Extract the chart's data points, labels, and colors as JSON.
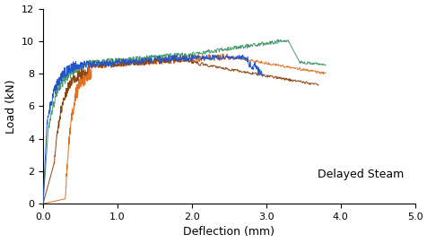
{
  "title": "",
  "xlabel": "Deflection (mm)",
  "ylabel": "Load (kN)",
  "annotation": "Delayed Steam",
  "xlim": [
    0.0,
    5.0
  ],
  "ylim": [
    0.0,
    12.0
  ],
  "xticks": [
    0.0,
    1.0,
    2.0,
    3.0,
    4.0,
    5.0
  ],
  "yticks": [
    0,
    2,
    4,
    6,
    8,
    10,
    12
  ],
  "colors": {
    "blue": "#2255cc",
    "green": "#4a9a6e",
    "orange": "#e07020",
    "brown": "#8B4513"
  },
  "linewidth": 0.7,
  "annotation_fontsize": 9,
  "axis_label_fontsize": 9,
  "tick_fontsize": 8,
  "background_color": "#ffffff"
}
